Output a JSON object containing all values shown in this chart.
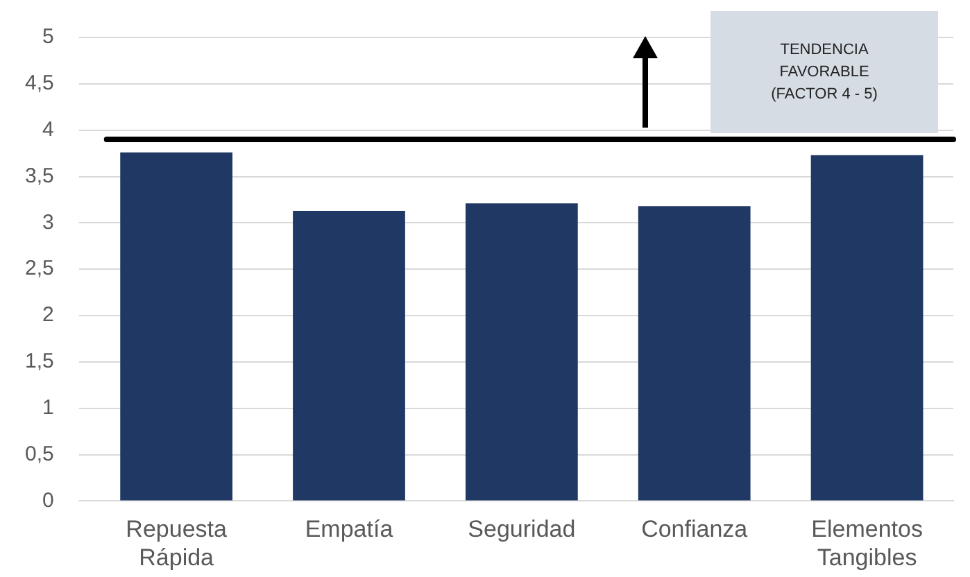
{
  "chart_data": {
    "type": "bar",
    "categories": [
      "Repuesta Rápida",
      "Empatía",
      "Seguridad",
      "Confianza",
      "Elementos Tangibles"
    ],
    "values": [
      3.76,
      3.13,
      3.21,
      3.18,
      3.73
    ],
    "color": "#1f3864",
    "ylim": [
      0,
      5
    ],
    "yticks": [
      0,
      {
        "value": 0.5,
        "label": "0,5"
      },
      1,
      {
        "value": 1.5,
        "label": "1,5"
      },
      2,
      {
        "value": 2.5,
        "label": "2,5"
      },
      3,
      {
        "value": 3.5,
        "label": "3,5"
      },
      4,
      {
        "value": 4.5,
        "label": "4,5"
      },
      5
    ],
    "grid": "y",
    "legend": false,
    "ref_lines": [
      {
        "axis": "y",
        "value": 3.9,
        "color": "#000000"
      }
    ],
    "annotations": [
      "TENDENCIA FAVORABLE (FACTOR 4 - 5)"
    ]
  }
}
